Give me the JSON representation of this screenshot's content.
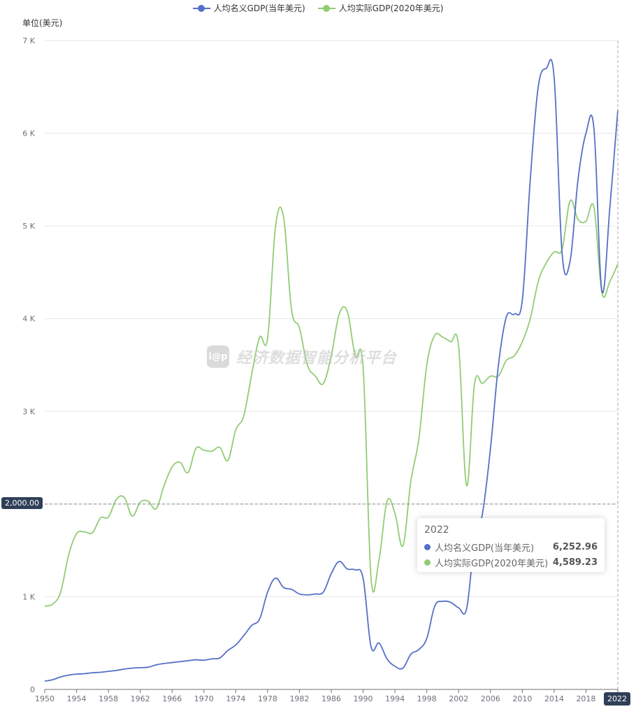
{
  "legend": {
    "nominal": "人均名义GDP(当年美元)",
    "real": "人均实际GDP(2020年美元)"
  },
  "unit_label": "单位(美元)",
  "watermark": {
    "logo": "i@p",
    "text": "经济数据智能分析平台"
  },
  "pointer": {
    "y_label": "2,000.00",
    "x_label": "2022"
  },
  "tooltip": {
    "title": "2022",
    "rows": [
      {
        "name": "人均名义GDP(当年美元)",
        "value": "6,252.96"
      },
      {
        "name": "人均实际GDP(2020年美元)",
        "value": "4,589.23"
      }
    ]
  },
  "colors": {
    "nominal": "#5470c6",
    "real": "#91cc75",
    "grid": "#e6e6e6",
    "axis": "#6e7079",
    "pointer": "#2f3f57"
  },
  "chart_data": {
    "type": "line",
    "xlabel": "",
    "ylabel": "单位(美元)",
    "ylim": [
      0,
      7000
    ],
    "yticks": [
      {
        "value": 0,
        "label": "0"
      },
      {
        "value": 1000,
        "label": "1 K"
      },
      {
        "value": 2000,
        "label": "2 K"
      },
      {
        "value": 3000,
        "label": "3 K"
      },
      {
        "value": 4000,
        "label": "4 K"
      },
      {
        "value": 5000,
        "label": "5 K"
      },
      {
        "value": 6000,
        "label": "6 K"
      },
      {
        "value": 7000,
        "label": "7 K"
      }
    ],
    "xticks": [
      "1950",
      "1954",
      "1958",
      "1962",
      "1966",
      "1970",
      "1974",
      "1978",
      "1982",
      "1986",
      "1990",
      "1994",
      "1998",
      "2002",
      "2006",
      "2010",
      "2014",
      "2018",
      "2022"
    ],
    "x": [
      1950,
      1951,
      1952,
      1953,
      1954,
      1955,
      1956,
      1957,
      1958,
      1959,
      1960,
      1961,
      1962,
      1963,
      1964,
      1965,
      1966,
      1967,
      1968,
      1969,
      1970,
      1971,
      1972,
      1973,
      1974,
      1975,
      1976,
      1977,
      1978,
      1979,
      1980,
      1981,
      1982,
      1983,
      1984,
      1985,
      1986,
      1987,
      1988,
      1989,
      1990,
      1991,
      1992,
      1993,
      1994,
      1995,
      1996,
      1997,
      1998,
      1999,
      2000,
      2001,
      2002,
      2003,
      2004,
      2005,
      2006,
      2007,
      2008,
      2009,
      2010,
      2011,
      2012,
      2013,
      2014,
      2015,
      2016,
      2017,
      2018,
      2019,
      2020,
      2021,
      2022
    ],
    "series": [
      {
        "name": "人均名义GDP(当年美元)",
        "values": [
          90,
          105,
          135,
          155,
          165,
          170,
          180,
          185,
          195,
          205,
          220,
          230,
          235,
          240,
          265,
          280,
          290,
          300,
          310,
          320,
          315,
          330,
          340,
          420,
          480,
          580,
          690,
          760,
          1050,
          1200,
          1100,
          1080,
          1030,
          1020,
          1030,
          1050,
          1250,
          1380,
          1300,
          1290,
          1200,
          460,
          500,
          330,
          250,
          230,
          380,
          430,
          550,
          900,
          950,
          940,
          880,
          870,
          1600,
          1900,
          2600,
          3500,
          4020,
          4050,
          4200,
          5500,
          6500,
          6700,
          6600,
          4700,
          4620,
          5500,
          6000,
          6050,
          4300,
          5200,
          6252.96
        ]
      },
      {
        "name": "人均实际GDP(2020年美元)",
        "values": [
          900,
          920,
          1050,
          1450,
          1680,
          1700,
          1690,
          1850,
          1860,
          2050,
          2070,
          1870,
          2020,
          2030,
          1950,
          2200,
          2400,
          2450,
          2340,
          2600,
          2580,
          2570,
          2610,
          2470,
          2800,
          2950,
          3400,
          3800,
          3790,
          5000,
          5100,
          4100,
          3900,
          3500,
          3380,
          3300,
          3600,
          4050,
          4080,
          3600,
          3470,
          1200,
          1400,
          2030,
          1900,
          1550,
          2250,
          2700,
          3500,
          3820,
          3800,
          3750,
          3700,
          2200,
          3300,
          3300,
          3380,
          3380,
          3550,
          3600,
          3750,
          4000,
          4400,
          4600,
          4720,
          4750,
          5270,
          5070,
          5050,
          5200,
          4280,
          4400,
          4589.23
        ]
      }
    ]
  }
}
